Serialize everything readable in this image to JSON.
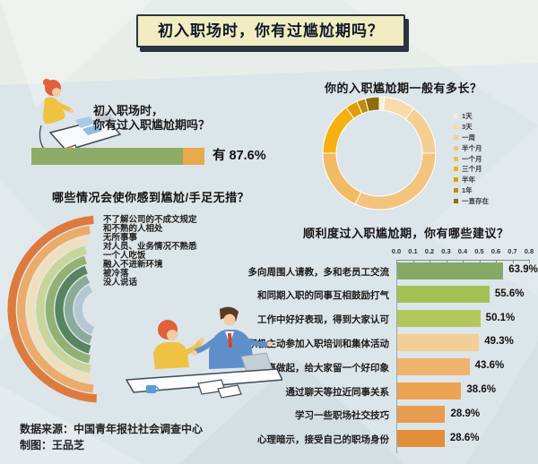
{
  "page_title": "初入职场时，你有过尴尬期吗？",
  "source": {
    "line1": "数据来源：中国青年报社社会调查中心",
    "line2": "制图：王品芝"
  },
  "colors": {
    "background": "#DCE5E9",
    "title_box_bg": "#F1ECC2",
    "title_box_shadow": "#2B3440"
  },
  "chart_data": [
    {
      "id": "had_awkward_period",
      "type": "bar",
      "title_line1": "初入职场时，",
      "title_line2": "你有过入职尴尬期吗？",
      "categories": [
        "有"
      ],
      "values": [
        87.6
      ],
      "unit": "%",
      "value_label": "有 87.6%",
      "colors": {
        "yes": "#8FAC67",
        "remainder": "#E8A84E"
      }
    },
    {
      "id": "duration_of_awkward_period",
      "type": "pie",
      "title": "你的入职尴尬期一般有多长？",
      "legend_position": "right",
      "categories": [
        "1天",
        "3天",
        "一周",
        "半个月",
        "一个月",
        "三个月",
        "半年",
        "1年",
        "一直存在"
      ],
      "values_est_pct": [
        1.5,
        9,
        14.5,
        32,
        18,
        15,
        3.5,
        2.5,
        4
      ],
      "colors": [
        "#FAEDD6",
        "#F8DBAA",
        "#F6CE92",
        "#F4C47E",
        "#F2BA62",
        "#F6B011",
        "#E19D00",
        "#C08A10",
        "#8E6C0C"
      ]
    },
    {
      "id": "awkward_situations",
      "type": "radial-bar",
      "title": "哪些情况会使你感到尴尬/手足无措？",
      "categories": [
        "不了解公司的不成文规定",
        "和不熟的人相处",
        "无所事事",
        "对人员、业务情况不熟悉",
        "一个人吃饭",
        "融入不进新环境",
        "被冷落",
        "没人说话"
      ],
      "sweep_deg_est": [
        172,
        166,
        160,
        155,
        149,
        143,
        137,
        131
      ],
      "colors": [
        "#DD7B3E",
        "#ECAB69",
        "#F0DFBC",
        "#C8D59A",
        "#93B173",
        "#568560",
        "#8AAB99",
        "#B5C7D5"
      ]
    },
    {
      "id": "suggestions",
      "type": "bar",
      "orientation": "horizontal",
      "title": "顺利度过入职尴尬期，你有哪些建议？",
      "categories": [
        "多向周围人请教，多和老员工交流",
        "和同期入职的同事互相鼓励打气",
        "工作中好好表现，得到大家认可",
        "积极主动参加入职培训和集体活动",
        "从小事做起，给大家留一个好印象",
        "通过聊天等拉近同事关系",
        "学习一些职场社交技巧",
        "心理暗示，接受自己的职场身份"
      ],
      "values": [
        0.639,
        0.556,
        0.501,
        0.493,
        0.436,
        0.386,
        0.289,
        0.286
      ],
      "value_labels": [
        "63.9%",
        "55.6%",
        "50.1%",
        "49.3%",
        "43.6%",
        "38.6%",
        "28.9%",
        "28.6%"
      ],
      "xlim": [
        0,
        0.8
      ],
      "x_ticks": [
        "0.0",
        "0.1",
        "0.2",
        "0.3",
        "0.4",
        "0.5",
        "0.6",
        "0.7",
        "0.8"
      ],
      "grid": false,
      "colors": [
        "#86A966",
        "#A4C054",
        "#B2C75D",
        "#F3CE96",
        "#F0B46E",
        "#EDA452",
        "#E89C4F",
        "#E18E38"
      ]
    }
  ]
}
